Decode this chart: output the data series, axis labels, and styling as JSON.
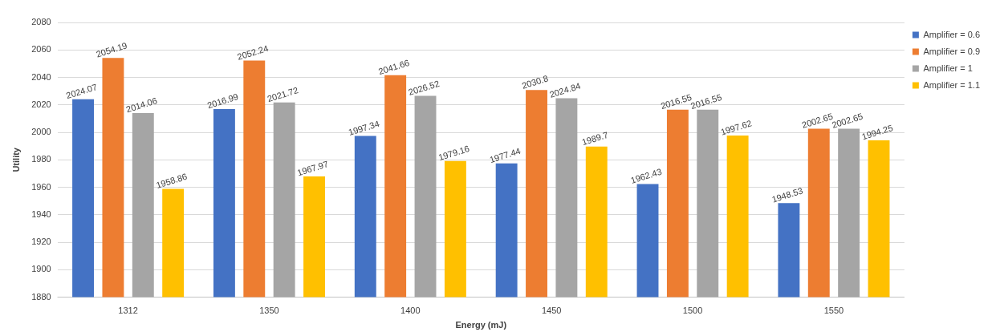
{
  "chart_data": {
    "type": "bar",
    "xlabel": "Energy (mJ)",
    "ylabel": "Utility",
    "categories": [
      "1312",
      "1350",
      "1400",
      "1450",
      "1500",
      "1550"
    ],
    "series": [
      {
        "name": "Amplifier = 0.6",
        "color": "#4472c4",
        "values": [
          2024.07,
          2016.99,
          1997.34,
          1977.44,
          1962.43,
          1948.53
        ]
      },
      {
        "name": "Amplifier = 0.9",
        "color": "#ed7d31",
        "values": [
          2054.19,
          2052.24,
          2041.66,
          2030.8,
          2016.55,
          2002.65
        ]
      },
      {
        "name": "Amplifier = 1",
        "color": "#a5a5a5",
        "values": [
          2014.06,
          2021.72,
          2026.52,
          2024.84,
          2016.55,
          2002.65
        ]
      },
      {
        "name": "Amplifier = 1.1",
        "color": "#ffc000",
        "values": [
          1958.86,
          1967.97,
          1979.16,
          1989.7,
          1997.62,
          1994.25
        ]
      }
    ],
    "ylim": [
      1880,
      2080
    ],
    "yticks": [
      1880,
      1900,
      1920,
      1940,
      1960,
      1980,
      2000,
      2020,
      2040,
      2060,
      2080
    ],
    "grid": "y",
    "legend": "top right",
    "data_labels": true
  }
}
